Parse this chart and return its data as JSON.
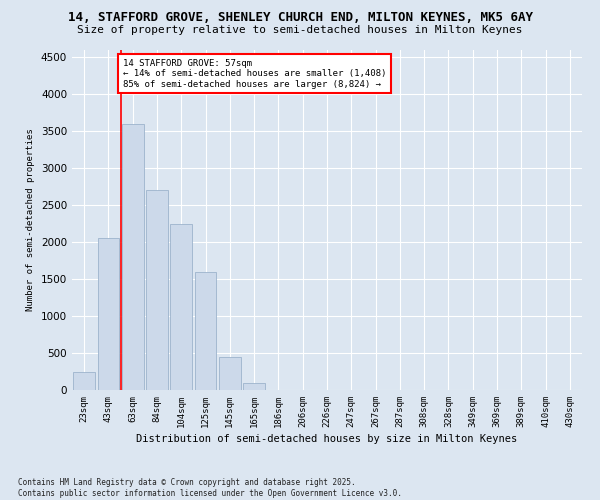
{
  "title_line1": "14, STAFFORD GROVE, SHENLEY CHURCH END, MILTON KEYNES, MK5 6AY",
  "title_line2": "Size of property relative to semi-detached houses in Milton Keynes",
  "xlabel": "Distribution of semi-detached houses by size in Milton Keynes",
  "ylabel": "Number of semi-detached properties",
  "categories": [
    "23sqm",
    "43sqm",
    "63sqm",
    "84sqm",
    "104sqm",
    "125sqm",
    "145sqm",
    "165sqm",
    "186sqm",
    "206sqm",
    "226sqm",
    "247sqm",
    "267sqm",
    "287sqm",
    "308sqm",
    "328sqm",
    "349sqm",
    "369sqm",
    "389sqm",
    "410sqm",
    "430sqm"
  ],
  "values": [
    250,
    2050,
    3600,
    2700,
    2250,
    1600,
    450,
    100,
    0,
    0,
    0,
    0,
    0,
    0,
    0,
    0,
    0,
    0,
    0,
    0,
    0
  ],
  "bar_color": "#ccd9ea",
  "bar_edge_color": "#9db3cc",
  "vline_position": 1.5,
  "vline_color": "red",
  "annotation_text": "14 STAFFORD GROVE: 57sqm\n← 14% of semi-detached houses are smaller (1,408)\n85% of semi-detached houses are larger (8,824) →",
  "ylim": [
    0,
    4600
  ],
  "yticks": [
    0,
    500,
    1000,
    1500,
    2000,
    2500,
    3000,
    3500,
    4000,
    4500
  ],
  "background_color": "#dce6f1",
  "footer_line1": "Contains HM Land Registry data © Crown copyright and database right 2025.",
  "footer_line2": "Contains public sector information licensed under the Open Government Licence v3.0."
}
